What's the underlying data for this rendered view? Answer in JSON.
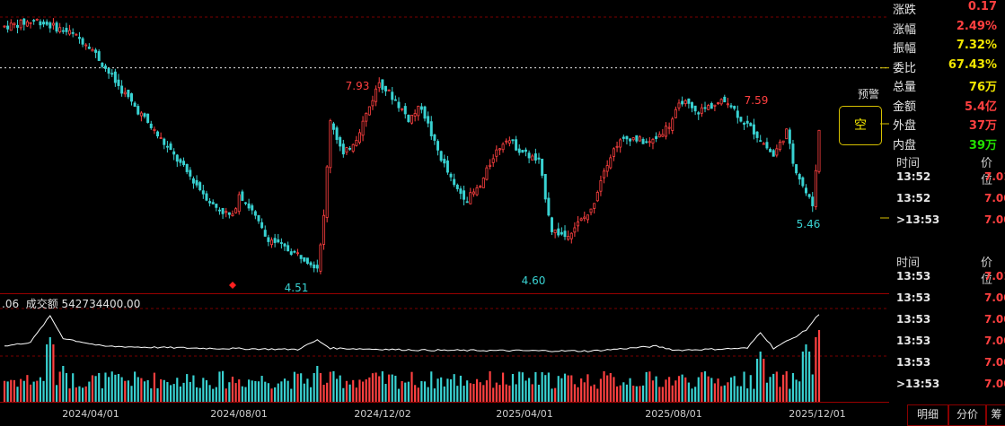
{
  "colors": {
    "up": "#ff4040",
    "down": "#39d2d2",
    "grid": "#7a0000",
    "alert": "#e8e8e8",
    "vol_line": "#ffffff"
  },
  "stats": [
    {
      "label": "涨跌",
      "value": "0.17",
      "color": "red"
    },
    {
      "label": "涨幅",
      "value": "2.49%",
      "color": "red"
    },
    {
      "label": "振幅",
      "value": "7.32%",
      "color": "yellow"
    },
    {
      "label": "委比",
      "value": "67.43%",
      "color": "yellow"
    },
    {
      "label": "总量",
      "value": "76万",
      "color": "yellow"
    },
    {
      "label": "金额",
      "value": "5.4亿",
      "color": "red"
    },
    {
      "label": "外盘",
      "value": "37万",
      "color": "red"
    },
    {
      "label": "内盘",
      "value": "39万",
      "color": "green"
    }
  ],
  "ticks1": {
    "header_time": "时间",
    "header_price": "价位",
    "rows": [
      {
        "time": "13:52",
        "price": "7.01"
      },
      {
        "time": "13:52",
        "price": "7.00"
      },
      {
        "time": ">13:53",
        "price": "7.00"
      }
    ]
  },
  "ticks2": {
    "header_time": "时间",
    "header_price": "价位",
    "rows": [
      {
        "time": "13:53",
        "price": "7.01"
      },
      {
        "time": "13:53",
        "price": "7.00"
      },
      {
        "time": "13:53",
        "price": "7.00"
      },
      {
        "time": "13:53",
        "price": "7.00"
      },
      {
        "time": "13:53",
        "price": "7.00"
      },
      {
        "time": ">13:53",
        "price": "7.00"
      }
    ]
  },
  "tabs": [
    "明细",
    "分价",
    "筹"
  ],
  "alert_label": "预警",
  "empty_box_label": "空",
  "volume_header": ".06  成交额 542734400.00",
  "chart_data": {
    "type": "candlestick",
    "x_ticks": [
      "2024/04/01",
      "2024/08/01",
      "2024/12/02",
      "2025/04/01",
      "2025/08/01",
      "2025/12/01"
    ],
    "annotations": [
      {
        "label": "7.93",
        "price": 7.93,
        "date": "2024/12"
      },
      {
        "label": "4.51",
        "price": 4.51,
        "date": "2024/10"
      },
      {
        "label": "4.60",
        "price": 4.6,
        "date": "2025/04"
      },
      {
        "label": "7.59",
        "price": 7.59,
        "date": "2025/10"
      },
      {
        "label": "5.46",
        "price": 5.46,
        "date": "2025/12"
      }
    ],
    "alert_price": 7.93,
    "close_trend": [
      [
        0,
        8.5
      ],
      [
        10,
        8.6
      ],
      [
        20,
        8.4
      ],
      [
        26,
        8.2
      ],
      [
        30,
        7.9
      ],
      [
        34,
        7.6
      ],
      [
        40,
        7.2
      ],
      [
        46,
        6.8
      ],
      [
        52,
        6.4
      ],
      [
        58,
        6.0
      ],
      [
        64,
        5.6
      ],
      [
        70,
        5.4
      ],
      [
        72,
        5.8
      ],
      [
        76,
        5.5
      ],
      [
        80,
        5.1
      ],
      [
        86,
        4.9
      ],
      [
        92,
        4.75
      ],
      [
        96,
        4.6
      ],
      [
        98,
        5.4
      ],
      [
        100,
        7.0
      ],
      [
        104,
        6.4
      ],
      [
        108,
        6.7
      ],
      [
        112,
        7.2
      ],
      [
        115,
        7.6
      ],
      [
        120,
        7.3
      ],
      [
        124,
        7.0
      ],
      [
        128,
        7.2
      ],
      [
        132,
        6.6
      ],
      [
        138,
        5.9
      ],
      [
        142,
        5.7
      ],
      [
        146,
        5.9
      ],
      [
        150,
        6.4
      ],
      [
        154,
        6.7
      ],
      [
        158,
        6.5
      ],
      [
        164,
        6.3
      ],
      [
        168,
        5.2
      ],
      [
        172,
        5.1
      ],
      [
        176,
        5.3
      ],
      [
        180,
        5.5
      ],
      [
        184,
        6.2
      ],
      [
        188,
        6.6
      ],
      [
        192,
        6.7
      ],
      [
        198,
        6.6
      ],
      [
        204,
        6.9
      ],
      [
        208,
        7.3
      ],
      [
        212,
        7.1
      ],
      [
        216,
        7.2
      ],
      [
        222,
        7.3
      ],
      [
        226,
        7.0
      ],
      [
        230,
        6.8
      ],
      [
        236,
        6.4
      ],
      [
        240,
        6.8
      ],
      [
        242,
        6.3
      ],
      [
        246,
        5.8
      ],
      [
        248,
        5.6
      ],
      [
        250,
        6.8
      ]
    ],
    "volume_line": [
      [
        0,
        0.2
      ],
      [
        8,
        0.3
      ],
      [
        14,
        0.95
      ],
      [
        18,
        0.4
      ],
      [
        24,
        0.3
      ],
      [
        30,
        0.2
      ],
      [
        40,
        0.18
      ],
      [
        60,
        0.15
      ],
      [
        90,
        0.12
      ],
      [
        96,
        0.35
      ],
      [
        100,
        0.15
      ],
      [
        130,
        0.1
      ],
      [
        180,
        0.08
      ],
      [
        200,
        0.2
      ],
      [
        206,
        0.1
      ],
      [
        228,
        0.15
      ],
      [
        232,
        0.55
      ],
      [
        236,
        0.15
      ],
      [
        242,
        0.4
      ],
      [
        246,
        0.6
      ],
      [
        250,
        1.0
      ]
    ]
  }
}
